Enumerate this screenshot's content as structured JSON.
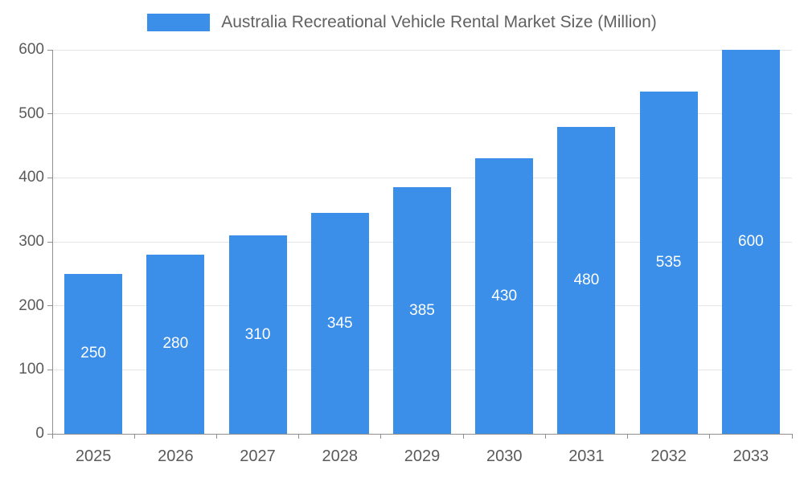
{
  "chart_data": {
    "type": "bar",
    "title": "Australia Recreational Vehicle Rental Market Size (Million)",
    "categories": [
      "2025",
      "2026",
      "2027",
      "2028",
      "2029",
      "2030",
      "2031",
      "2032",
      "2033"
    ],
    "values": [
      250,
      280,
      310,
      345,
      385,
      430,
      480,
      535,
      600
    ],
    "xlabel": "",
    "ylabel": "",
    "ylim": [
      0,
      600
    ],
    "y_ticks": [
      0,
      100,
      200,
      300,
      400,
      500,
      600
    ],
    "grid": true,
    "legend_position": "top",
    "data_labels": true
  },
  "colors": {
    "bar": "#3B8FE8",
    "bar_label": "#FFFFFF",
    "title_text": "#616161",
    "axis_line": "#8F8F8F",
    "tick_label": "#5A5A5A",
    "gridline": "#E5E5E5",
    "background": "#FFFFFF"
  }
}
